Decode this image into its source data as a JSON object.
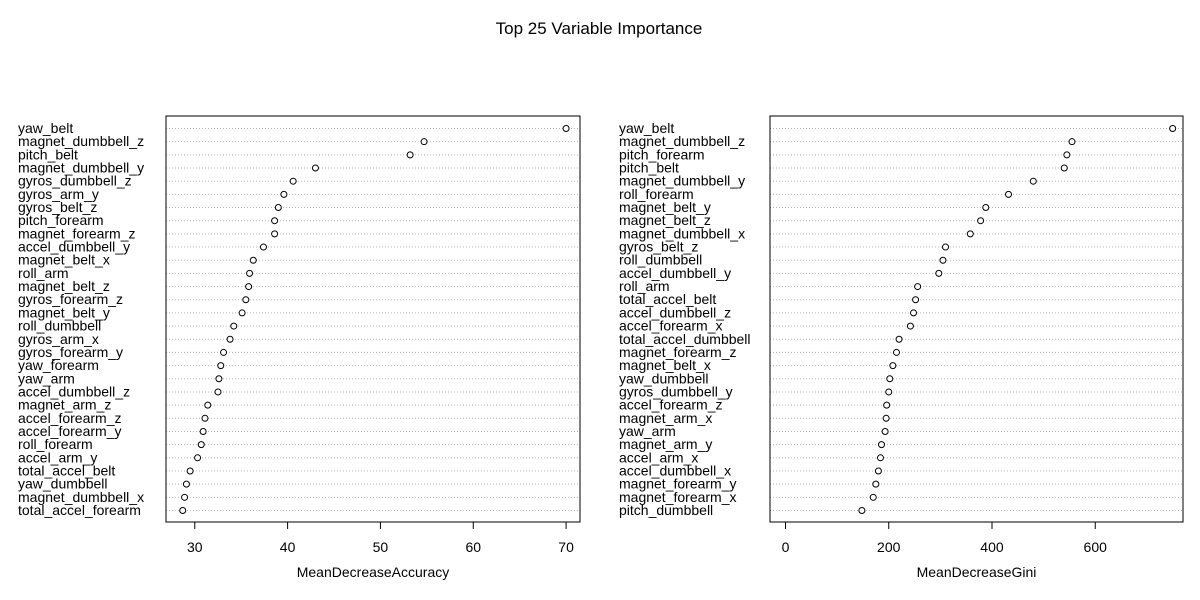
{
  "chart_data": {
    "title": "Top 25 Variable Importance",
    "panels": [
      {
        "type": "scatter",
        "xlabel": "MeanDecreaseAccuracy",
        "xlim": [
          26.9,
          71.5
        ],
        "xticks": [
          30,
          40,
          50,
          60,
          70
        ],
        "grid": "dotted-horizontal",
        "categories": [
          "yaw_belt",
          "magnet_dumbbell_z",
          "pitch_belt",
          "magnet_dumbbell_y",
          "gyros_dumbbell_z",
          "gyros_arm_y",
          "gyros_belt_z",
          "pitch_forearm",
          "magnet_forearm_z",
          "accel_dumbbell_y",
          "magnet_belt_x",
          "roll_arm",
          "magnet_belt_z",
          "gyros_forearm_z",
          "magnet_belt_y",
          "roll_dumbbell",
          "gyros_arm_x",
          "gyros_forearm_y",
          "yaw_forearm",
          "yaw_arm",
          "accel_dumbbell_z",
          "magnet_arm_z",
          "accel_forearm_z",
          "accel_forearm_y",
          "roll_forearm",
          "accel_arm_y",
          "total_accel_belt",
          "yaw_dumbbell",
          "magnet_dumbbell_x",
          "total_accel_forearm"
        ],
        "values": [
          70.0,
          54.7,
          53.2,
          43.0,
          40.6,
          39.6,
          39.0,
          38.6,
          38.6,
          37.4,
          36.3,
          35.9,
          35.8,
          35.5,
          35.1,
          34.2,
          33.8,
          33.1,
          32.8,
          32.6,
          32.5,
          31.4,
          31.1,
          30.9,
          30.7,
          30.3,
          29.5,
          29.1,
          28.9,
          28.7
        ]
      },
      {
        "type": "scatter",
        "xlabel": "MeanDecreaseGini",
        "xlim": [
          -30,
          770
        ],
        "xticks": [
          0,
          200,
          400,
          600
        ],
        "grid": "dotted-horizontal",
        "categories": [
          "yaw_belt",
          "magnet_dumbbell_z",
          "pitch_forearm",
          "pitch_belt",
          "magnet_dumbbell_y",
          "roll_forearm",
          "magnet_belt_y",
          "magnet_belt_z",
          "magnet_dumbbell_x",
          "gyros_belt_z",
          "roll_dumbbell",
          "accel_dumbbell_y",
          "roll_arm",
          "total_accel_belt",
          "accel_dumbbell_z",
          "accel_forearm_x",
          "total_accel_dumbbell",
          "magnet_forearm_z",
          "magnet_belt_x",
          "yaw_dumbbell",
          "gyros_dumbbell_y",
          "accel_forearm_z",
          "magnet_arm_x",
          "yaw_arm",
          "magnet_arm_y",
          "accel_arm_x",
          "accel_dumbbell_x",
          "magnet_forearm_y",
          "magnet_forearm_x",
          "pitch_dumbbell"
        ],
        "values": [
          750,
          555,
          545,
          540,
          480,
          432,
          388,
          378,
          358,
          310,
          305,
          297,
          256,
          252,
          248,
          242,
          220,
          215,
          208,
          202,
          200,
          196,
          195,
          193,
          186,
          184,
          180,
          175,
          170,
          148
        ]
      }
    ]
  }
}
